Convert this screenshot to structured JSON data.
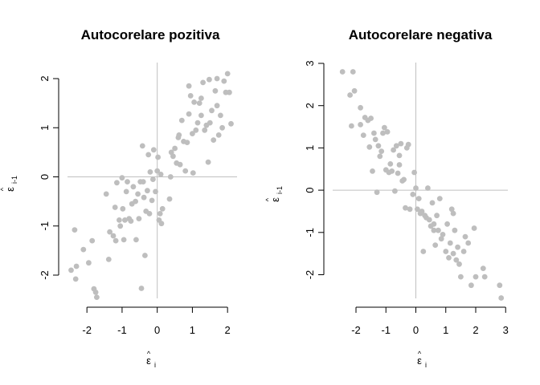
{
  "chart_data": [
    {
      "type": "scatter",
      "title": "Autocorelare pozitiva",
      "xlabel": "ε̂_i",
      "ylabel": "ε̂_i-1",
      "xlabel_parts": {
        "accent": "^",
        "symbol": "ε",
        "subscript": "i"
      },
      "ylabel_parts": {
        "accent": "^",
        "symbol": "ε",
        "subscript": "i-1"
      },
      "xlim": [
        -2.5,
        2.3
      ],
      "ylim": [
        -2.5,
        2.3
      ],
      "xticks": [
        -2,
        -1,
        0,
        1,
        2
      ],
      "yticks": [
        -2,
        -1,
        0,
        1,
        2
      ],
      "reference_lines": {
        "x": 0,
        "y": 0
      },
      "grid": false,
      "point_color": "#bebebe",
      "points": [
        [
          -2.45,
          -1.9
        ],
        [
          -2.35,
          -1.08
        ],
        [
          -2.32,
          -2.08
        ],
        [
          -2.3,
          -1.82
        ],
        [
          -2.1,
          -1.48
        ],
        [
          -1.95,
          -1.75
        ],
        [
          -1.85,
          -1.3
        ],
        [
          -1.8,
          -2.28
        ],
        [
          -1.75,
          -2.35
        ],
        [
          -1.72,
          -2.45
        ],
        [
          -1.45,
          -0.35
        ],
        [
          -1.38,
          -1.68
        ],
        [
          -1.35,
          -1.12
        ],
        [
          -1.25,
          -1.2
        ],
        [
          -1.2,
          -0.62
        ],
        [
          -1.18,
          -1.3
        ],
        [
          -1.15,
          -0.12
        ],
        [
          -1.08,
          -0.88
        ],
        [
          -1.05,
          -1.0
        ],
        [
          -1.0,
          -0.02
        ],
        [
          -0.98,
          -0.65
        ],
        [
          -0.95,
          -1.28
        ],
        [
          -0.92,
          -0.88
        ],
        [
          -0.88,
          -0.3
        ],
        [
          -0.85,
          -0.1
        ],
        [
          -0.8,
          -0.85
        ],
        [
          -0.75,
          -0.9
        ],
        [
          -0.72,
          -0.55
        ],
        [
          -0.68,
          -0.2
        ],
        [
          -0.62,
          -0.5
        ],
        [
          -0.6,
          -1.28
        ],
        [
          -0.55,
          -0.35
        ],
        [
          -0.52,
          -0.85
        ],
        [
          -0.48,
          -0.1
        ],
        [
          -0.45,
          -2.27
        ],
        [
          -0.42,
          0.63
        ],
        [
          -0.4,
          -0.1
        ],
        [
          -0.38,
          -0.42
        ],
        [
          -0.35,
          -1.6
        ],
        [
          -0.32,
          -0.7
        ],
        [
          -0.28,
          -0.28
        ],
        [
          -0.25,
          0.45
        ],
        [
          -0.22,
          -0.75
        ],
        [
          -0.2,
          0.1
        ],
        [
          -0.15,
          -0.48
        ],
        [
          -0.12,
          -0.05
        ],
        [
          -0.1,
          0.55
        ],
        [
          -0.05,
          -0.3
        ],
        [
          0.0,
          0.12
        ],
        [
          0.02,
          0.4
        ],
        [
          0.05,
          -0.88
        ],
        [
          0.08,
          -0.75
        ],
        [
          0.1,
          0.05
        ],
        [
          0.12,
          -0.95
        ],
        [
          0.15,
          -0.65
        ],
        [
          0.35,
          -0.45
        ],
        [
          0.38,
          0.0
        ],
        [
          0.4,
          0.5
        ],
        [
          0.45,
          0.42
        ],
        [
          0.5,
          0.58
        ],
        [
          0.55,
          0.28
        ],
        [
          0.6,
          0.8
        ],
        [
          0.65,
          0.25
        ],
        [
          0.7,
          1.15
        ],
        [
          0.75,
          0.72
        ],
        [
          0.8,
          0.12
        ],
        [
          0.85,
          0.7
        ],
        [
          0.9,
          1.28
        ],
        [
          0.95,
          1.65
        ],
        [
          1.0,
          0.88
        ],
        [
          1.05,
          1.52
        ],
        [
          1.1,
          0.95
        ],
        [
          1.15,
          1.1
        ],
        [
          1.2,
          1.5
        ],
        [
          1.25,
          1.25
        ],
        [
          1.3,
          1.92
        ],
        [
          1.35,
          0.95
        ],
        [
          1.4,
          1.05
        ],
        [
          1.45,
          0.3
        ],
        [
          1.5,
          1.1
        ],
        [
          1.55,
          1.35
        ],
        [
          1.6,
          0.75
        ],
        [
          1.65,
          1.75
        ],
        [
          1.7,
          1.45
        ],
        [
          1.75,
          0.85
        ],
        [
          1.8,
          1.25
        ],
        [
          1.85,
          1.0
        ],
        [
          1.9,
          1.95
        ],
        [
          1.95,
          1.72
        ],
        [
          2.0,
          2.1
        ],
        [
          2.05,
          1.72
        ],
        [
          2.1,
          1.08
        ],
        [
          1.02,
          0.08
        ],
        [
          0.62,
          0.85
        ],
        [
          1.25,
          1.6
        ],
        [
          0.9,
          1.85
        ],
        [
          1.7,
          2.0
        ],
        [
          1.48,
          1.98
        ]
      ]
    },
    {
      "type": "scatter",
      "title": "Autocorelare negativa",
      "xlabel": "ε̂_i",
      "ylabel": "ε̂_i-1",
      "xlabel_parts": {
        "accent": "^",
        "symbol": "ε",
        "subscript": "i"
      },
      "ylabel_parts": {
        "accent": "^",
        "symbol": "ε",
        "subscript": "i-1"
      },
      "xlim": [
        -2.5,
        3.0
      ],
      "ylim": [
        -2.7,
        3.0
      ],
      "xticks": [
        -2,
        -1,
        0,
        1,
        2,
        3
      ],
      "yticks": [
        -2,
        -1,
        0,
        1,
        2,
        3
      ],
      "reference_lines": {
        "x": 0,
        "y": 0
      },
      "grid": false,
      "point_color": "#bebebe",
      "points": [
        [
          -2.45,
          2.8
        ],
        [
          -2.2,
          2.25
        ],
        [
          -2.1,
          2.8
        ],
        [
          -2.05,
          2.35
        ],
        [
          -2.15,
          1.52
        ],
        [
          -1.85,
          1.95
        ],
        [
          -1.85,
          1.55
        ],
        [
          -1.75,
          1.3
        ],
        [
          -1.7,
          1.72
        ],
        [
          -1.6,
          1.65
        ],
        [
          -1.55,
          1.02
        ],
        [
          -1.5,
          1.7
        ],
        [
          -1.45,
          0.45
        ],
        [
          -1.4,
          1.35
        ],
        [
          -1.35,
          1.2
        ],
        [
          -1.3,
          -0.05
        ],
        [
          -1.25,
          1.05
        ],
        [
          -1.2,
          0.8
        ],
        [
          -1.15,
          0.92
        ],
        [
          -1.1,
          1.35
        ],
        [
          -1.05,
          1.48
        ],
        [
          -1.0,
          0.48
        ],
        [
          -0.95,
          1.38
        ],
        [
          -0.9,
          0.42
        ],
        [
          -0.85,
          0.62
        ],
        [
          -0.8,
          0.45
        ],
        [
          -0.75,
          0.95
        ],
        [
          -0.7,
          -0.02
        ],
        [
          -0.65,
          1.05
        ],
        [
          -0.6,
          0.4
        ],
        [
          -0.55,
          0.6
        ],
        [
          -0.5,
          1.1
        ],
        [
          -0.45,
          0.22
        ],
        [
          -0.4,
          0.25
        ],
        [
          -0.35,
          -0.42
        ],
        [
          -0.3,
          1.0
        ],
        [
          -0.25,
          1.08
        ],
        [
          -0.1,
          -0.1
        ],
        [
          -0.05,
          0.42
        ],
        [
          0.0,
          0.05
        ],
        [
          0.05,
          -0.45
        ],
        [
          0.1,
          -0.2
        ],
        [
          0.15,
          -0.55
        ],
        [
          0.2,
          -0.5
        ],
        [
          0.3,
          -0.6
        ],
        [
          0.35,
          -0.65
        ],
        [
          0.4,
          0.05
        ],
        [
          0.45,
          -0.7
        ],
        [
          0.5,
          -0.85
        ],
        [
          0.55,
          -0.3
        ],
        [
          0.6,
          -0.95
        ],
        [
          0.65,
          -1.3
        ],
        [
          0.7,
          -0.6
        ],
        [
          0.75,
          -0.95
        ],
        [
          0.8,
          -0.2
        ],
        [
          0.85,
          -1.15
        ],
        [
          0.9,
          -1.05
        ],
        [
          1.0,
          -1.45
        ],
        [
          1.05,
          -0.8
        ],
        [
          1.1,
          -1.6
        ],
        [
          1.15,
          -1.25
        ],
        [
          1.2,
          -0.45
        ],
        [
          1.25,
          -1.5
        ],
        [
          1.3,
          -0.95
        ],
        [
          1.35,
          -1.65
        ],
        [
          1.4,
          -1.35
        ],
        [
          1.45,
          -1.75
        ],
        [
          1.5,
          -2.05
        ],
        [
          1.6,
          -1.45
        ],
        [
          1.65,
          -1.1
        ],
        [
          1.75,
          -1.25
        ],
        [
          1.85,
          -2.25
        ],
        [
          1.95,
          -0.9
        ],
        [
          2.0,
          -2.05
        ],
        [
          2.25,
          -1.85
        ],
        [
          2.3,
          -2.05
        ],
        [
          2.8,
          -2.25
        ],
        [
          2.85,
          -2.55
        ],
        [
          -0.2,
          -0.45
        ],
        [
          0.25,
          -1.45
        ],
        [
          1.25,
          -0.55
        ],
        [
          -0.55,
          0.82
        ],
        [
          0.6,
          -0.8
        ]
      ]
    }
  ]
}
